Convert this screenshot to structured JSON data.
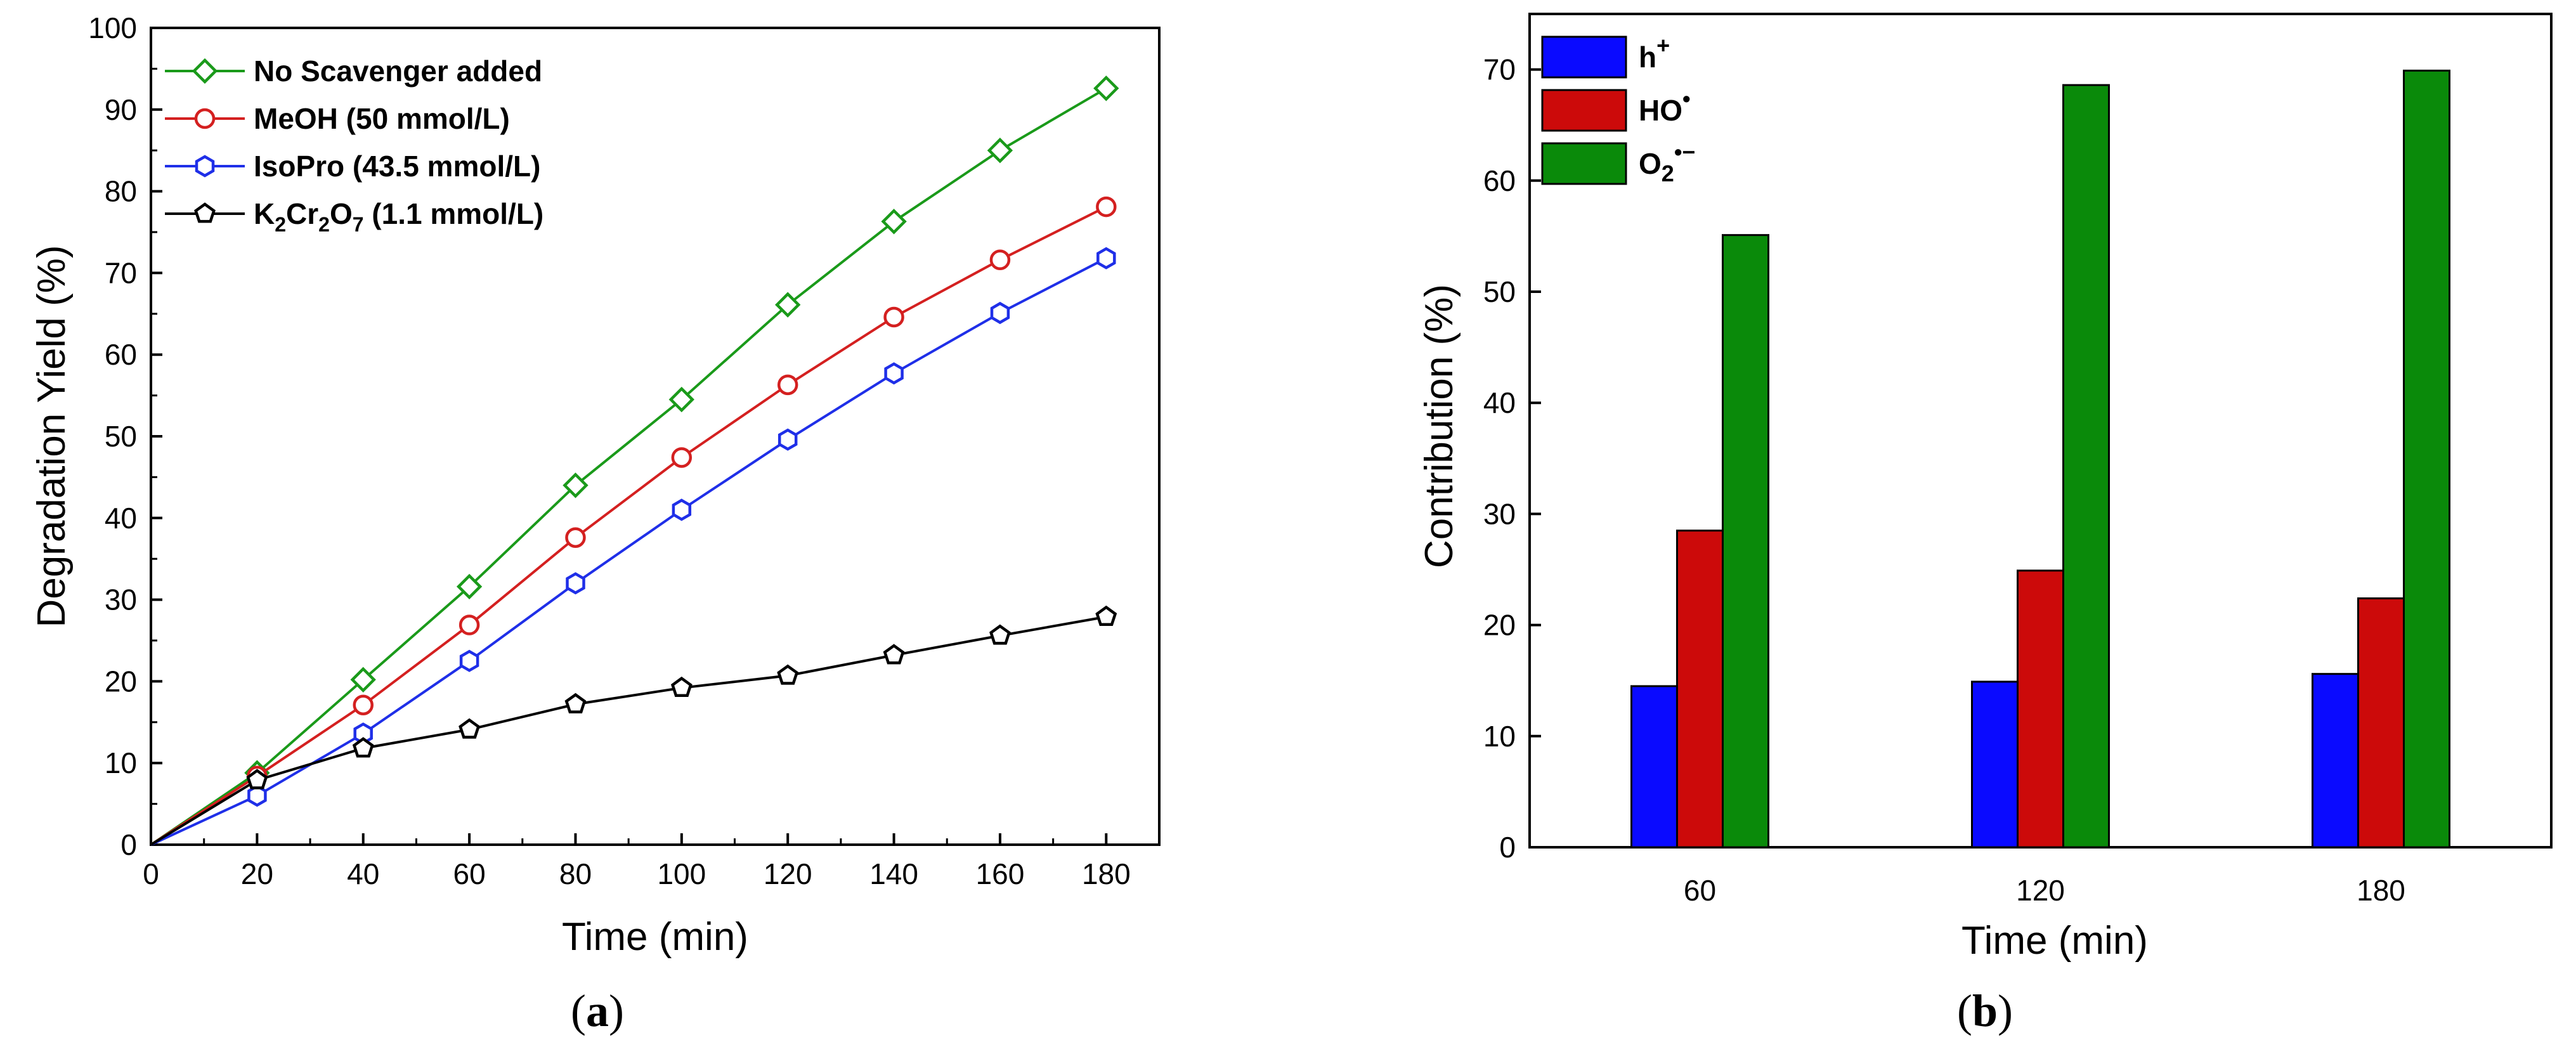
{
  "chart_data": [
    {
      "type": "line",
      "panel_label": "a",
      "xlabel": "Time (min)",
      "ylabel": "Degradation Yield (%)",
      "xlim": [
        0,
        190
      ],
      "ylim": [
        0,
        100
      ],
      "xticks": [
        0,
        20,
        40,
        60,
        80,
        100,
        120,
        140,
        160,
        180
      ],
      "yticks": [
        0,
        10,
        20,
        30,
        40,
        50,
        60,
        70,
        80,
        90,
        100
      ],
      "legend_position": "top-left",
      "x": [
        0,
        20,
        40,
        60,
        80,
        100,
        120,
        140,
        160,
        180
      ],
      "series": [
        {
          "name": "No Scavenger added",
          "legend_parts": [
            "No Scavenger added"
          ],
          "color": "#1a9a1a",
          "marker": "diamond",
          "values": [
            0,
            8.8,
            20.2,
            31.6,
            44.0,
            54.5,
            66.1,
            76.3,
            85.0,
            92.6
          ]
        },
        {
          "name": "MeOH (50 mmol/L)",
          "legend_parts": [
            "MeOH (50 mmol/L)"
          ],
          "color": "#d42020",
          "marker": "circle",
          "values": [
            0,
            8.4,
            17.1,
            26.9,
            37.6,
            47.4,
            56.3,
            64.6,
            71.6,
            78.1
          ]
        },
        {
          "name": "IsoPro (43.5 mmol/L)",
          "legend_parts": [
            "IsoPro (43.5 mmol/L)"
          ],
          "color": "#1f2fe8",
          "marker": "hexagon",
          "values": [
            0,
            6.0,
            13.6,
            22.5,
            32.0,
            41.0,
            49.6,
            57.7,
            65.1,
            71.8
          ]
        },
        {
          "name": "K2Cr2O7 (1.1 mmol/L)",
          "legend_parts": [
            "K",
            "2",
            "Cr",
            "2",
            "O",
            "7",
            " (1.1 mmol/L)"
          ],
          "color": "#000000",
          "marker": "pentagon",
          "values": [
            0,
            7.9,
            11.8,
            14.1,
            17.2,
            19.2,
            20.7,
            23.2,
            25.6,
            27.9
          ]
        }
      ]
    },
    {
      "type": "bar",
      "panel_label": "b",
      "xlabel": "Time (min)",
      "ylabel": "Contribution (%)",
      "ylim": [
        0,
        75
      ],
      "yticks": [
        0,
        10,
        20,
        30,
        40,
        50,
        60,
        70
      ],
      "legend_position": "top-left",
      "categories": [
        "60",
        "120",
        "180"
      ],
      "series": [
        {
          "name": "h+",
          "legend_main": "h",
          "legend_sup": "+",
          "legend_sub": "",
          "color": "#0a0aff",
          "values": [
            14.5,
            14.9,
            15.6
          ]
        },
        {
          "name": "HO•",
          "legend_main": "HO",
          "legend_sup": "•",
          "legend_sub": "",
          "color": "#cc0a0a",
          "values": [
            28.5,
            24.9,
            22.4
          ]
        },
        {
          "name": "O2•−",
          "legend_main": "O",
          "legend_sup": "•−",
          "legend_sub": "2",
          "color": "#0a8a0a",
          "values": [
            55.1,
            68.6,
            69.9
          ]
        }
      ]
    }
  ]
}
